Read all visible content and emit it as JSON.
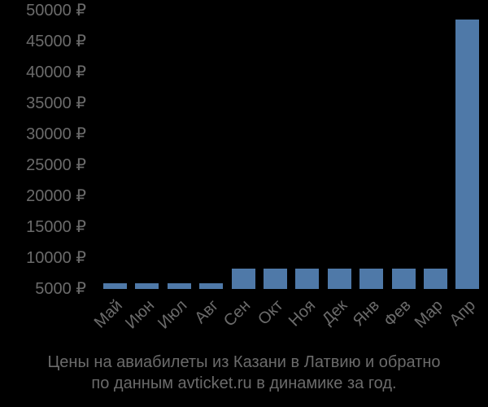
{
  "chart_data": {
    "type": "bar",
    "title": "Цены на авиабилеты из Казани в Латвию и обратно по данным avticket.ru в динамике за год.",
    "xlabel": "",
    "ylabel": "",
    "categories": [
      "Май",
      "Июн",
      "Июл",
      "Авг",
      "Сен",
      "Окт",
      "Ноя",
      "Дек",
      "Янв",
      "Фев",
      "Мар",
      "Апр"
    ],
    "values": [
      5900,
      5900,
      5900,
      5900,
      8300,
      8300,
      8300,
      8300,
      8300,
      8300,
      8300,
      48600
    ],
    "ylim": [
      5000,
      50000
    ],
    "yticks": [
      5000,
      10000,
      15000,
      20000,
      25000,
      30000,
      35000,
      40000,
      45000,
      50000
    ],
    "ytick_labels": [
      "5000 ₽",
      "10000 ₽",
      "15000 ₽",
      "20000 ₽",
      "25000 ₽",
      "30000 ₽",
      "35000 ₽",
      "40000 ₽",
      "45000 ₽",
      "50000 ₽"
    ],
    "grid": false,
    "legend": null,
    "bar_color": "#4f79a8"
  },
  "caption": {
    "line1": "Цены на авиабилеты из Казани в Латвию и обратно",
    "line2": "по данным avticket.ru в динамике за год."
  }
}
